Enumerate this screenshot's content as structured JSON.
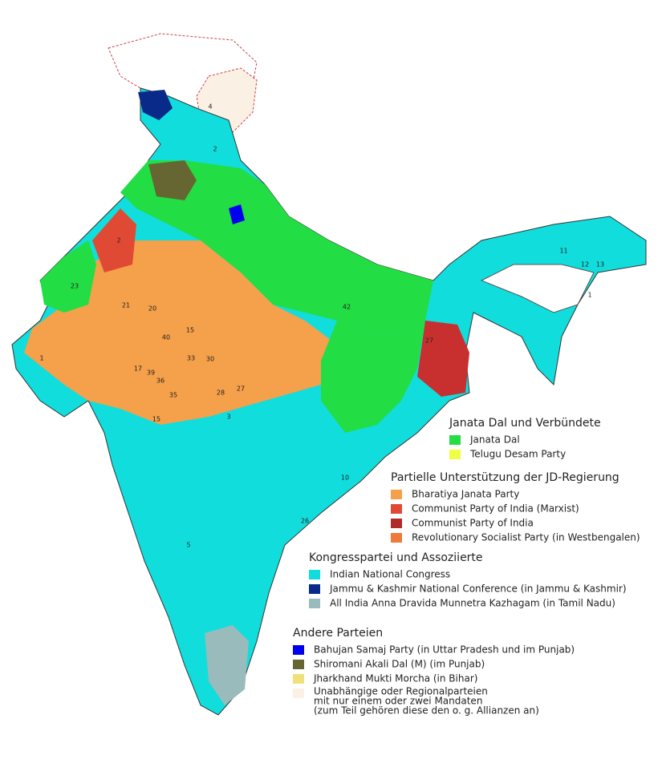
{
  "legend": [
    {
      "heading": "Janata Dal und Verbündete",
      "items": [
        {
          "label": "Janata Dal",
          "color": "#22dd44"
        },
        {
          "label": "Telugu Desam Party",
          "color": "#eeff44"
        }
      ]
    },
    {
      "heading": "Partielle Unterstützung der JD-Regierung",
      "items": [
        {
          "label": "Bharatiya Janata Party",
          "color": "#f5a04a"
        },
        {
          "label": "Communist Party of India (Marxist)",
          "color": "#e04a34"
        },
        {
          "label": "Communist Party of India",
          "color": "#b02a2a"
        },
        {
          "label": "Revolutionary Socialist Party (in Westbengalen)",
          "color": "#f07a3a"
        }
      ]
    },
    {
      "heading": "Kongresspartei und Assoziierte",
      "items": [
        {
          "label": "Indian National Congress",
          "color": "#11dddd"
        },
        {
          "label": "Jammu & Kashmir National Conference (in Jammu & Kashmir)",
          "color": "#0a2a8a"
        },
        {
          "label": "All India Anna Dravida Munnetra Kazhagam (in Tamil Nadu)",
          "color": "#99bbbb"
        }
      ]
    },
    {
      "heading": "Andere Parteien",
      "items": [
        {
          "label": "Bahujan Samaj Party (in Uttar Pradesh und im Punjab)",
          "color": "#0000ee"
        },
        {
          "label": "Shiromani Akali Dal (M) (im Punjab)",
          "color": "#666633"
        },
        {
          "label": "Jharkhand Mukti Morcha (in Bihar)",
          "color": "#f0e07a"
        },
        {
          "label": [
            "Unabhängige oder Regionalparteien",
            "mit nur einem oder zwei Mandaten",
            "(zum Teil gehören diese den o. g. Allianzen an)"
          ],
          "color": "#fbf0e4"
        }
      ]
    }
  ],
  "map_labels": [
    "4",
    "2",
    "23",
    "1",
    "2",
    "21",
    "40",
    "33",
    "28",
    "27",
    "12",
    "1",
    "13",
    "1",
    "1",
    "42",
    "15",
    "20",
    "36",
    "30",
    "39",
    "17",
    "15",
    "35",
    "5",
    "3",
    "10",
    "26",
    "27"
  ]
}
